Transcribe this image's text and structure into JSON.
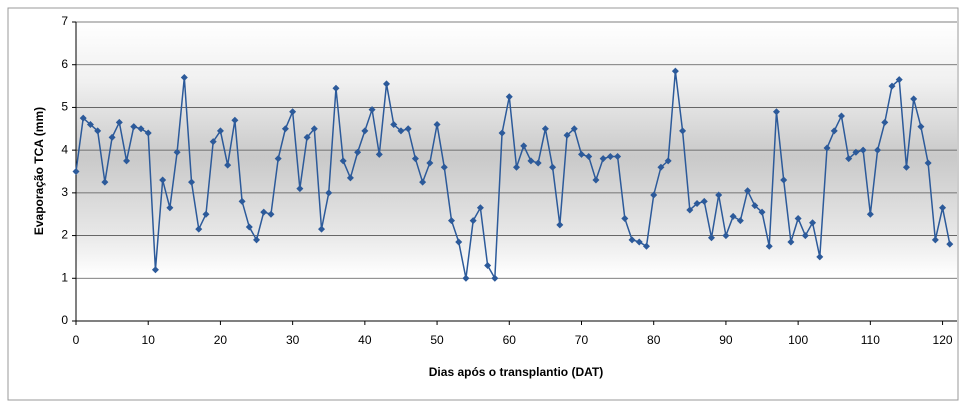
{
  "chart_data": {
    "type": "line",
    "ylabel": "Evaporação TCA (mm)",
    "xlabel": "Dias após o transplantio (DAT)",
    "x": [
      0,
      1,
      2,
      3,
      4,
      5,
      6,
      7,
      8,
      9,
      10,
      11,
      12,
      13,
      14,
      15,
      16,
      17,
      18,
      19,
      20,
      21,
      22,
      23,
      24,
      25,
      26,
      27,
      28,
      29,
      30,
      31,
      32,
      33,
      34,
      35,
      36,
      37,
      38,
      39,
      40,
      41,
      42,
      43,
      44,
      45,
      46,
      47,
      48,
      49,
      50,
      51,
      52,
      53,
      54,
      55,
      56,
      57,
      58,
      59,
      60,
      61,
      62,
      63,
      64,
      65,
      66,
      67,
      68,
      69,
      70,
      71,
      72,
      73,
      74,
      75,
      76,
      77,
      78,
      79,
      80,
      81,
      82,
      83,
      84,
      85,
      86,
      87,
      88,
      89,
      90,
      91,
      92,
      93,
      94,
      95,
      96,
      97,
      98,
      99,
      100,
      101,
      102,
      103,
      104,
      105,
      106,
      107,
      108,
      109,
      110,
      111,
      112,
      113,
      114,
      115,
      116,
      117,
      118,
      119,
      120,
      121
    ],
    "values": [
      3.5,
      4.75,
      4.6,
      4.45,
      3.25,
      4.3,
      4.65,
      3.75,
      4.55,
      4.5,
      4.4,
      1.2,
      3.3,
      2.65,
      3.95,
      5.7,
      3.25,
      2.15,
      2.5,
      4.2,
      4.45,
      3.65,
      4.7,
      2.8,
      2.2,
      1.9,
      2.55,
      2.5,
      3.8,
      4.5,
      4.9,
      3.1,
      4.3,
      4.5,
      2.15,
      3.0,
      5.45,
      3.75,
      3.35,
      3.95,
      4.45,
      4.95,
      3.9,
      5.55,
      4.6,
      4.45,
      4.5,
      3.8,
      3.25,
      3.7,
      4.6,
      3.6,
      2.35,
      1.85,
      1.0,
      2.35,
      2.65,
      1.3,
      1.0,
      4.4,
      5.25,
      3.6,
      4.1,
      3.75,
      3.7,
      4.5,
      3.6,
      2.25,
      4.35,
      4.5,
      3.9,
      3.85,
      3.3,
      3.8,
      3.85,
      3.85,
      2.4,
      1.9,
      1.85,
      1.75,
      2.95,
      3.6,
      3.75,
      5.85,
      4.45,
      2.6,
      2.75,
      2.8,
      1.95,
      2.95,
      2.0,
      2.45,
      2.35,
      3.05,
      2.7,
      2.55,
      1.75,
      4.9,
      3.3,
      1.85,
      2.4,
      2.0,
      2.3,
      1.5,
      4.05,
      4.45,
      4.8,
      3.8,
      3.95,
      4.0,
      2.5,
      4.0,
      4.65,
      5.5,
      5.65,
      3.6,
      5.2,
      4.55,
      3.7,
      1.9,
      2.65,
      1.8
    ],
    "color": "#2c5a9a",
    "xlim": [
      0,
      122
    ],
    "xticks": [
      0,
      10,
      20,
      30,
      40,
      50,
      60,
      70,
      80,
      90,
      100,
      110,
      120
    ],
    "ylim": [
      0,
      7
    ],
    "yticks": [
      0,
      1,
      2,
      3,
      4,
      5,
      6,
      7
    ],
    "grid": true
  }
}
